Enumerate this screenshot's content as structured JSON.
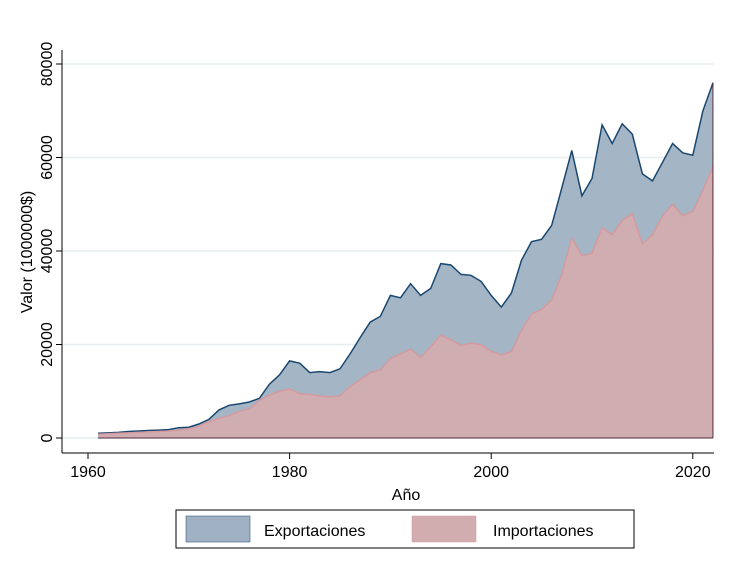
{
  "chart_data": {
    "type": "area",
    "title": "",
    "xlabel": "Año",
    "ylabel": "Valor (1000000$)",
    "xlim": [
      1958,
      2024
    ],
    "ylim": [
      0,
      80000
    ],
    "xticks": [
      1960,
      1980,
      2000,
      2020
    ],
    "yticks": [
      0,
      20000,
      40000,
      60000,
      80000
    ],
    "grid": true,
    "legend_position": "bottom",
    "x": [
      1961,
      1962,
      1963,
      1964,
      1965,
      1966,
      1967,
      1968,
      1969,
      1970,
      1971,
      1972,
      1973,
      1974,
      1975,
      1976,
      1977,
      1978,
      1979,
      1980,
      1981,
      1982,
      1983,
      1984,
      1985,
      1986,
      1987,
      1988,
      1989,
      1990,
      1991,
      1992,
      1993,
      1994,
      1995,
      1996,
      1997,
      1998,
      1999,
      2000,
      2001,
      2002,
      2003,
      2004,
      2005,
      2006,
      2007,
      2008,
      2009,
      2010,
      2011,
      2012,
      2013,
      2014,
      2015,
      2016,
      2017,
      2018,
      2019,
      2020,
      2021,
      2022
    ],
    "series": [
      {
        "name": "Exportaciones",
        "color": "#9fb1c3",
        "line": "#1a476f",
        "values": [
          1000,
          1100,
          1200,
          1400,
          1500,
          1600,
          1700,
          1800,
          2200,
          2300,
          3000,
          4000,
          6000,
          7000,
          7300,
          7700,
          8500,
          11500,
          13500,
          16500,
          16000,
          14000,
          14200,
          14000,
          14800,
          18000,
          21500,
          24800,
          26000,
          30500,
          30000,
          33000,
          30500,
          32000,
          37300,
          37000,
          35000,
          34800,
          33500,
          30500,
          28000,
          31000,
          38000,
          42000,
          42500,
          45500,
          53500,
          61500,
          51800,
          55500,
          67000,
          63000,
          67200,
          65000,
          56500,
          55000,
          59000,
          63000,
          61000,
          60500,
          70000,
          76000
        ]
      },
      {
        "name": "Importaciones",
        "color": "#d2adb0",
        "line": "#d49a9e",
        "values": [
          800,
          900,
          1000,
          1100,
          1200,
          1300,
          1400,
          1500,
          1700,
          2000,
          2500,
          3500,
          4200,
          4800,
          5700,
          6200,
          8000,
          9200,
          10000,
          10500,
          9500,
          9300,
          9000,
          8800,
          9000,
          11000,
          12500,
          14000,
          14500,
          17000,
          18000,
          19000,
          17200,
          19500,
          22000,
          21000,
          19800,
          20300,
          20000,
          18500,
          17800,
          18500,
          23000,
          26500,
          27500,
          29500,
          35000,
          42800,
          39000,
          39500,
          45000,
          43500,
          46500,
          48000,
          41500,
          43500,
          47500,
          50000,
          47500,
          48500,
          53000,
          58000
        ]
      }
    ]
  }
}
